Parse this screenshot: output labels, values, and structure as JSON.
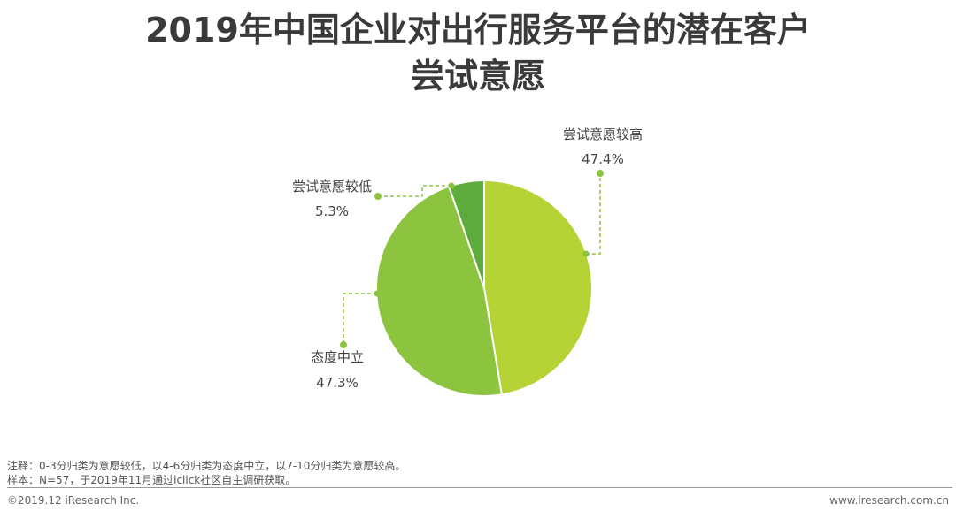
{
  "title_line1": "2019年中国企业对出行服务平台的潜在客户",
  "title_line2": "尝试意愿",
  "chart_data": {
    "type": "pie",
    "slices": [
      {
        "label": "尝试意愿较高",
        "value": 47.4,
        "value_label": "47.4%",
        "color": "#b5d334"
      },
      {
        "label": "态度中立",
        "value": 47.3,
        "value_label": "47.3%",
        "color": "#8dc43f"
      },
      {
        "label": "尝试意愿较低",
        "value": 5.3,
        "value_label": "5.3%",
        "color": "#5daa3d"
      }
    ],
    "connector_color": "#8dc43f"
  },
  "notes": {
    "note1": "注释：0-3分归类为意愿较低，以4-6分归类为态度中立，以7-10分归类为意愿较高。",
    "note2": "样本：N=57，于2019年11月通过iclick社区自主调研获取。"
  },
  "footer": {
    "copyright": "©2019.12 iResearch Inc.",
    "website": "www.iresearch.com.cn"
  }
}
